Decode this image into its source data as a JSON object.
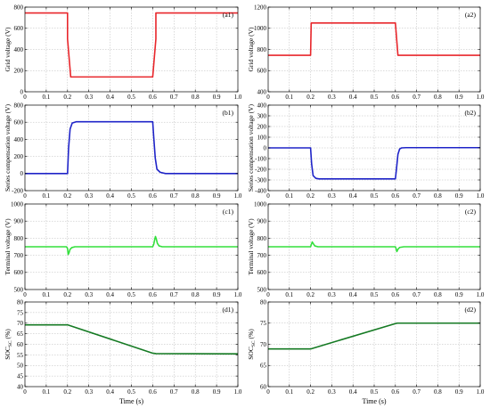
{
  "chart_data": [
    {
      "id": "a1",
      "type": "line",
      "tag": "(a1)",
      "ylabel": "Grid voltage (V)",
      "xlabel": "",
      "xlim": [
        0,
        1.0
      ],
      "ylim": [
        0,
        800
      ],
      "xticks": [
        "0",
        "0.1",
        "0.2",
        "0.3",
        "0.4",
        "0.5",
        "0.6",
        "0.7",
        "0.8",
        "0.9",
        "1.0"
      ],
      "yticks": [
        "0",
        "200",
        "400",
        "600",
        "800"
      ],
      "grid": true,
      "color": "#e8262b",
      "series": [
        {
          "x": [
            0,
            0.2,
            0.2,
            0.215,
            0.6,
            0.615,
            0.615,
            1.0
          ],
          "y": [
            745,
            745,
            500,
            140,
            140,
            500,
            745,
            745
          ]
        }
      ]
    },
    {
      "id": "a2",
      "type": "line",
      "tag": "(a2)",
      "ylabel": "Grid voltage (V)",
      "xlabel": "",
      "xlim": [
        0,
        1.0
      ],
      "ylim": [
        400,
        1200
      ],
      "xticks": [
        "0",
        "0.1",
        "0.2",
        "0.3",
        "0.4",
        "0.5",
        "0.6",
        "0.7",
        "0.8",
        "0.9",
        "1.0"
      ],
      "yticks": [
        "400",
        "600",
        "800",
        "1000",
        "1200"
      ],
      "grid": true,
      "color": "#e8262b",
      "series": [
        {
          "x": [
            0,
            0.2,
            0.203,
            0.6,
            0.612,
            1.0
          ],
          "y": [
            745,
            745,
            1050,
            1050,
            745,
            745
          ]
        }
      ]
    },
    {
      "id": "b1",
      "type": "line",
      "tag": "(b1)",
      "ylabel": "Series compensation voltage (V)",
      "xlabel": "",
      "xlim": [
        0,
        1.0
      ],
      "ylim": [
        -200,
        800
      ],
      "xticks": [
        "0",
        "0.1",
        "0.2",
        "0.3",
        "0.4",
        "0.5",
        "0.6",
        "0.7",
        "0.8",
        "0.9",
        "1.0"
      ],
      "yticks": [
        "-200",
        "0",
        "200",
        "400",
        "600",
        "800"
      ],
      "grid": true,
      "color": "#1f24c8",
      "series": [
        {
          "x": [
            0,
            0.2,
            0.205,
            0.212,
            0.222,
            0.24,
            0.6,
            0.605,
            0.612,
            0.62,
            0.635,
            0.66,
            1.0
          ],
          "y": [
            0,
            0,
            300,
            520,
            590,
            605,
            605,
            420,
            180,
            50,
            15,
            0,
            0
          ]
        }
      ]
    },
    {
      "id": "b2",
      "type": "line",
      "tag": "(b2)",
      "ylabel": "Series compensation voltage (V)",
      "xlabel": "",
      "xlim": [
        0,
        1.0
      ],
      "ylim": [
        -400,
        400
      ],
      "xticks": [
        "0",
        "0.1",
        "0.2",
        "0.3",
        "0.4",
        "0.5",
        "0.6",
        "0.7",
        "0.8",
        "0.9",
        "1.0"
      ],
      "yticks": [
        "-400",
        "-300",
        "-200",
        "-100",
        "0",
        "100",
        "200",
        "300",
        "400"
      ],
      "grid": true,
      "color": "#1f24c8",
      "series": [
        {
          "x": [
            0,
            0.2,
            0.205,
            0.212,
            0.225,
            0.24,
            0.6,
            0.605,
            0.612,
            0.62,
            0.63,
            0.65,
            1.0
          ],
          "y": [
            0,
            0,
            -150,
            -260,
            -285,
            -290,
            -290,
            -200,
            -60,
            -10,
            0,
            2,
            2
          ]
        }
      ]
    },
    {
      "id": "c1",
      "type": "line",
      "tag": "(c1)",
      "ylabel": "Terminal voltage (V)",
      "xlabel": "",
      "xlim": [
        0,
        1.0
      ],
      "ylim": [
        500,
        1000
      ],
      "xticks": [
        "0",
        "0.1",
        "0.2",
        "0.3",
        "0.4",
        "0.5",
        "0.6",
        "0.7",
        "0.8",
        "0.9",
        "1.0"
      ],
      "yticks": [
        "500",
        "600",
        "700",
        "800",
        "900",
        "1000"
      ],
      "grid": true,
      "color": "#33e03c",
      "series": [
        {
          "x": [
            0,
            0.195,
            0.2,
            0.203,
            0.207,
            0.212,
            0.22,
            0.235,
            0.25,
            0.6,
            0.605,
            0.61,
            0.613,
            0.617,
            0.622,
            0.63,
            0.645,
            0.67,
            1.0
          ],
          "y": [
            750,
            750,
            740,
            705,
            715,
            735,
            745,
            750,
            750,
            750,
            765,
            795,
            810,
            795,
            770,
            755,
            750,
            750,
            750
          ]
        }
      ]
    },
    {
      "id": "c2",
      "type": "line",
      "tag": "(c2)",
      "ylabel": "Terminal voltage (V)",
      "xlabel": "",
      "xlim": [
        0,
        1.0
      ],
      "ylim": [
        500,
        1000
      ],
      "xticks": [
        "0",
        "0.1",
        "0.2",
        "0.3",
        "0.4",
        "0.5",
        "0.6",
        "0.7",
        "0.8",
        "0.9",
        "1.0"
      ],
      "yticks": [
        "500",
        "600",
        "700",
        "800",
        "900",
        "1000"
      ],
      "grid": true,
      "color": "#33e03c",
      "series": [
        {
          "x": [
            0,
            0.2,
            0.204,
            0.208,
            0.213,
            0.22,
            0.235,
            0.6,
            0.603,
            0.607,
            0.612,
            0.62,
            0.64,
            1.0
          ],
          "y": [
            750,
            750,
            765,
            778,
            768,
            755,
            750,
            750,
            740,
            722,
            735,
            746,
            750,
            750
          ]
        }
      ]
    },
    {
      "id": "d1",
      "type": "line",
      "tag": "(d1)",
      "ylabel": "SOC",
      "ylabel_sub": "SC",
      "ylabel_unit": " (%)",
      "xlabel": "Time (s)",
      "xlim": [
        0,
        1.0
      ],
      "ylim": [
        40,
        80
      ],
      "xticks": [
        "0",
        "0.1",
        "0.2",
        "0.3",
        "0.4",
        "0.5",
        "0.6",
        "0.7",
        "0.8",
        "0.9",
        "1.0"
      ],
      "yticks": [
        "40",
        "45",
        "50",
        "55",
        "60",
        "65",
        "70",
        "75",
        "80"
      ],
      "grid": true,
      "color": "#157a23",
      "series": [
        {
          "x": [
            0,
            0.2,
            0.6,
            0.615,
            1.0
          ],
          "y": [
            69.2,
            69.2,
            55.8,
            55.6,
            55.5
          ]
        }
      ]
    },
    {
      "id": "d2",
      "type": "line",
      "tag": "(d2)",
      "ylabel": "SOC",
      "ylabel_sub": "SC",
      "ylabel_unit": " (%)",
      "xlabel": "Time (s)",
      "xlim": [
        0,
        1.0
      ],
      "ylim": [
        60,
        80
      ],
      "xticks": [
        "0",
        "0.1",
        "0.2",
        "0.3",
        "0.4",
        "0.5",
        "0.6",
        "0.7",
        "0.8",
        "0.9",
        "1.0"
      ],
      "yticks": [
        "60",
        "65",
        "70",
        "75",
        "80"
      ],
      "grid": true,
      "color": "#157a23",
      "series": [
        {
          "x": [
            0,
            0.2,
            0.6,
            0.61,
            1.0
          ],
          "y": [
            68.9,
            68.9,
            74.9,
            75.0,
            75.0
          ]
        }
      ]
    }
  ]
}
